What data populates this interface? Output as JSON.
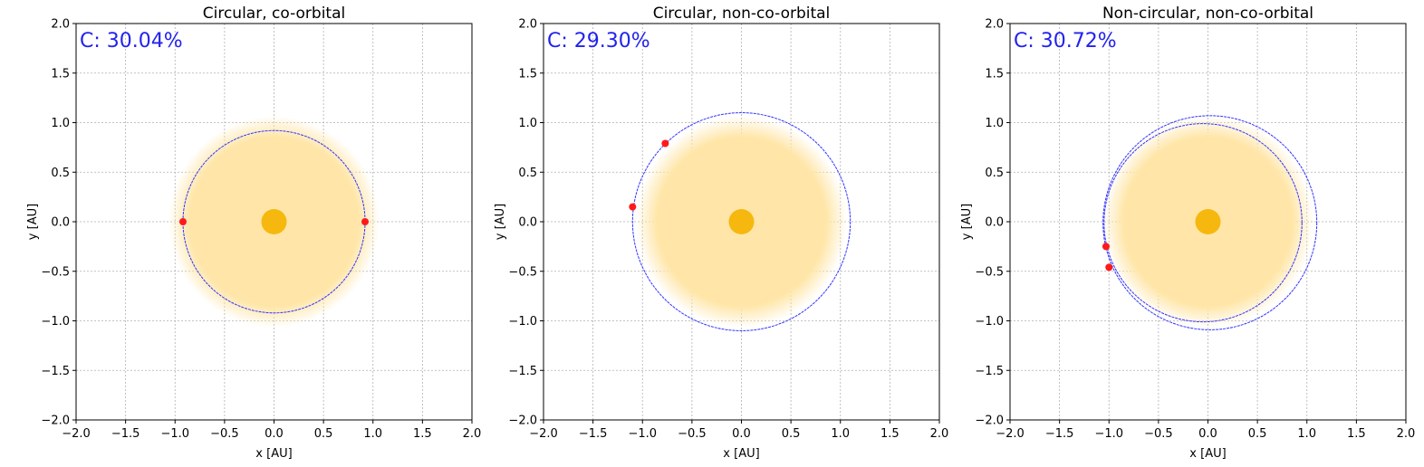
{
  "colors": {
    "orbit": "#3333ff",
    "planet": "#ff1a1a",
    "star": "#f6b80f",
    "habitable_zone": "#ffe6a8",
    "grid": "#b0b0b0",
    "annotation": "#2222ee"
  },
  "chart_data": [
    {
      "type": "scatter",
      "title": "Circular, co-orbital",
      "xlabel": "x [AU]",
      "ylabel": "y [AU]",
      "xlim": [
        -2.0,
        2.0
      ],
      "ylim": [
        -2.0,
        2.0
      ],
      "xticks": [
        "−2.0",
        "−1.5",
        "−1.0",
        "−0.5",
        "0.0",
        "0.5",
        "1.0",
        "1.5",
        "2.0"
      ],
      "yticks": [
        "−2.0",
        "−1.5",
        "−1.0",
        "−0.5",
        "0.0",
        "0.5",
        "1.0",
        "1.5",
        "2.0"
      ],
      "grid": true,
      "annotation": "C: 30.04%",
      "star": {
        "x": 0.0,
        "y": 0.0
      },
      "habitable_zone_radius": 0.95,
      "orbits": [
        {
          "cx": 0.0,
          "cy": 0.0,
          "rx": 0.92,
          "ry": 0.92
        }
      ],
      "planets": [
        {
          "x": -0.92,
          "y": 0.0
        },
        {
          "x": 0.92,
          "y": 0.0
        }
      ]
    },
    {
      "type": "scatter",
      "title": "Circular, non-co-orbital",
      "xlabel": "x [AU]",
      "ylabel": "y [AU]",
      "xlim": [
        -2.0,
        2.0
      ],
      "ylim": [
        -2.0,
        2.0
      ],
      "xticks": [
        "−2.0",
        "−1.5",
        "−1.0",
        "−0.5",
        "0.0",
        "0.5",
        "1.0",
        "1.5",
        "2.0"
      ],
      "yticks": [
        "−2.0",
        "−1.5",
        "−1.0",
        "−0.5",
        "0.0",
        "0.5",
        "1.0",
        "1.5",
        "2.0"
      ],
      "grid": true,
      "annotation": "C: 29.30%",
      "star": {
        "x": 0.0,
        "y": 0.0
      },
      "habitable_zone_radius": 0.95,
      "orbits": [
        {
          "cx": 0.0,
          "cy": 0.0,
          "rx": 1.1,
          "ry": 1.1
        }
      ],
      "planets": [
        {
          "x": -0.77,
          "y": 0.79
        },
        {
          "x": -1.1,
          "y": 0.15
        }
      ]
    },
    {
      "type": "scatter",
      "title": "Non-circular, non-co-orbital",
      "xlabel": "x [AU]",
      "ylabel": "y [AU]",
      "xlim": [
        -2.0,
        2.0
      ],
      "ylim": [
        -2.0,
        2.0
      ],
      "xticks": [
        "−2.0",
        "−1.5",
        "−1.0",
        "−0.5",
        "0.0",
        "0.5",
        "1.0",
        "1.5",
        "2.0"
      ],
      "yticks": [
        "−2.0",
        "−1.5",
        "−1.0",
        "−0.5",
        "0.0",
        "0.5",
        "1.0",
        "1.5",
        "2.0"
      ],
      "grid": true,
      "annotation": "C: 30.72%",
      "star": {
        "x": 0.0,
        "y": 0.0
      },
      "habitable_zone_radius": 0.95,
      "orbits": [
        {
          "cx": -0.05,
          "cy": -0.01,
          "rx": 1.0,
          "ry": 1.0
        },
        {
          "cx": 0.02,
          "cy": -0.01,
          "rx": 1.08,
          "ry": 1.08
        }
      ],
      "planets": [
        {
          "x": -1.03,
          "y": -0.25
        },
        {
          "x": -1.0,
          "y": -0.46
        }
      ]
    }
  ]
}
